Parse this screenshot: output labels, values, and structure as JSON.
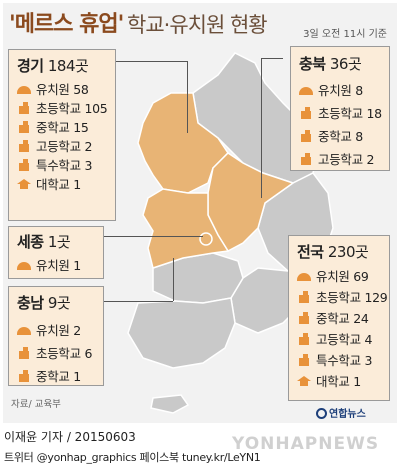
{
  "title": {
    "main": "'메르스 휴업'",
    "sub": "학교·유치원 현황",
    "as_of": "3일 오전 11시 기준"
  },
  "regions": {
    "gyeonggi": {
      "name": "경기",
      "count": "184곳",
      "items": [
        {
          "icon": "kindergarten-icon",
          "label": "유치원 58"
        },
        {
          "icon": "school-icon",
          "label": "초등학교 105"
        },
        {
          "icon": "school-icon",
          "label": "중학교 15"
        },
        {
          "icon": "school-icon",
          "label": "고등학교 2"
        },
        {
          "icon": "school-icon",
          "label": "특수학교 3"
        },
        {
          "icon": "graduation-cap-icon",
          "label": "대학교 1"
        }
      ]
    },
    "sejong": {
      "name": "세종",
      "count": "1곳",
      "items": [
        {
          "icon": "kindergarten-icon",
          "label": "유치원 1"
        }
      ]
    },
    "chungnam": {
      "name": "충남",
      "count": "9곳",
      "items": [
        {
          "icon": "kindergarten-icon",
          "label": "유치원 2"
        },
        {
          "icon": "school-icon",
          "label": "초등학교 6"
        },
        {
          "icon": "school-icon",
          "label": "중학교 1"
        }
      ]
    },
    "chungbuk": {
      "name": "충북",
      "count": "36곳",
      "items": [
        {
          "icon": "kindergarten-icon",
          "label": "유치원 8"
        },
        {
          "icon": "school-icon",
          "label": "초등학교 18"
        },
        {
          "icon": "school-icon",
          "label": "중학교 8"
        },
        {
          "icon": "school-icon",
          "label": "고등학교 2"
        }
      ]
    },
    "national": {
      "name": "전국",
      "count": "230곳",
      "items": [
        {
          "icon": "kindergarten-icon",
          "label": "유치원 69"
        },
        {
          "icon": "school-icon",
          "label": "초등학교 129"
        },
        {
          "icon": "school-icon",
          "label": "중학교 24"
        },
        {
          "icon": "school-icon",
          "label": "고등학교 4"
        },
        {
          "icon": "school-icon",
          "label": "특수학교 3"
        },
        {
          "icon": "graduation-cap-icon",
          "label": "대학교 1"
        }
      ]
    }
  },
  "source": "자료/ 교육부",
  "logo": "연합뉴스",
  "watermark": "YONHAPNEWS",
  "credit": "이재윤 기자 / 20150603",
  "social": "트위터 @yonhap_graphics  페이스북 tuney.kr/LeYN1",
  "colors": {
    "highlight_region": "#e8b475",
    "other_region": "#c9c9c9",
    "box_fill": "#fbecd9",
    "icon": "#e8923a",
    "title": "#8b4a1e"
  }
}
